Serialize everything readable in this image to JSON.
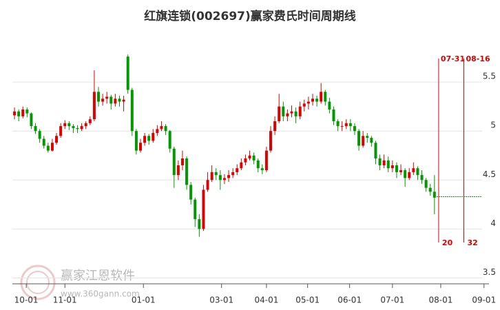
{
  "chart_data": {
    "type": "candlestick",
    "title": "红旗连锁(002697)赢家费氏时间周期线",
    "watermark": "赢家江恩软件",
    "watermark_url": "www.360gann.com",
    "up_color": "#e00000",
    "down_color": "#009900",
    "xlim": [
      0,
      112.5
    ],
    "xticks": [
      {
        "value": 3.3,
        "label": "10-01"
      },
      {
        "value": 12.5,
        "label": "11-01"
      },
      {
        "value": 31.2,
        "label": "01-01"
      },
      {
        "value": 49.8,
        "label": "03-01"
      },
      {
        "value": 60.5,
        "label": "04-01"
      },
      {
        "value": 70.3,
        "label": "05-01"
      },
      {
        "value": 80.3,
        "label": "06-01"
      },
      {
        "value": 90.5,
        "label": "07-01"
      },
      {
        "value": 102,
        "label": "08-01"
      },
      {
        "value": 112.3,
        "label": "09-01"
      }
    ],
    "ylim": [
      3.44,
      6.0
    ],
    "yticks": [
      {
        "value": 3.5,
        "label": "3.5"
      },
      4,
      4.5,
      5,
      5.5
    ],
    "grid": true,
    "cycle_lines": [
      {
        "x": 101.5,
        "label": "07-31",
        "count": 20
      },
      {
        "x": 107.5,
        "label": "08-16",
        "count": 32
      }
    ],
    "cycle_color": "#e00000",
    "level": 4.33,
    "level_color": "#009900",
    "ohlc": [
      [
        5.16,
        5.24,
        5.12,
        5.2
      ],
      [
        5.2,
        5.22,
        5.1,
        5.15
      ],
      [
        5.15,
        5.25,
        5.13,
        5.22
      ],
      [
        5.22,
        5.24,
        5.14,
        5.18
      ],
      [
        5.18,
        5.19,
        5.02,
        5.05
      ],
      [
        5.05,
        5.08,
        4.97,
        5.0
      ],
      [
        5.0,
        5.02,
        4.88,
        4.92
      ],
      [
        4.92,
        4.95,
        4.82,
        4.85
      ],
      [
        4.85,
        4.88,
        4.78,
        4.8
      ],
      [
        4.8,
        4.92,
        4.79,
        4.88
      ],
      [
        4.88,
        4.98,
        4.86,
        4.95
      ],
      [
        4.95,
        5.08,
        4.93,
        5.05
      ],
      [
        5.05,
        5.11,
        5.02,
        5.08
      ],
      [
        5.08,
        5.1,
        5.01,
        5.05
      ],
      [
        5.05,
        5.07,
        4.98,
        5.03
      ],
      [
        5.03,
        5.06,
        4.98,
        5.02
      ],
      [
        5.02,
        5.08,
        5.0,
        5.05
      ],
      [
        5.05,
        5.1,
        5.02,
        5.08
      ],
      [
        5.08,
        5.15,
        5.06,
        5.12
      ],
      [
        5.12,
        5.62,
        5.1,
        5.4
      ],
      [
        5.4,
        5.45,
        5.25,
        5.3
      ],
      [
        5.3,
        5.38,
        5.26,
        5.33
      ],
      [
        5.33,
        5.4,
        5.28,
        5.35
      ],
      [
        5.35,
        5.37,
        5.22,
        5.28
      ],
      [
        5.28,
        5.38,
        5.25,
        5.33
      ],
      [
        5.33,
        5.36,
        5.25,
        5.3
      ],
      [
        5.3,
        5.36,
        5.2,
        5.32
      ],
      [
        5.76,
        5.78,
        5.38,
        5.42
      ],
      [
        5.42,
        5.44,
        4.95,
        5.0
      ],
      [
        5.0,
        5.02,
        4.76,
        4.8
      ],
      [
        4.8,
        4.92,
        4.78,
        4.88
      ],
      [
        4.88,
        4.98,
        4.85,
        4.95
      ],
      [
        4.95,
        4.97,
        4.86,
        4.9
      ],
      [
        4.9,
        5.02,
        4.88,
        4.98
      ],
      [
        4.98,
        5.06,
        4.95,
        5.02
      ],
      [
        5.02,
        5.1,
        5.0,
        5.05
      ],
      [
        5.05,
        5.07,
        4.96,
        5.0
      ],
      [
        5.0,
        5.01,
        4.78,
        4.82
      ],
      [
        4.82,
        4.84,
        4.42,
        4.55
      ],
      [
        4.55,
        4.7,
        4.5,
        4.65
      ],
      [
        4.65,
        4.8,
        4.6,
        4.72
      ],
      [
        4.72,
        4.74,
        4.4,
        4.45
      ],
      [
        4.45,
        4.48,
        4.25,
        4.3
      ],
      [
        4.3,
        4.32,
        4.02,
        4.1
      ],
      [
        4.1,
        4.15,
        3.92,
        4.0
      ],
      [
        4.0,
        4.45,
        3.98,
        4.4
      ],
      [
        4.4,
        4.58,
        4.38,
        4.5
      ],
      [
        4.5,
        4.65,
        4.48,
        4.58
      ],
      [
        4.58,
        4.62,
        4.5,
        4.55
      ],
      [
        4.55,
        4.6,
        4.4,
        4.5
      ],
      [
        4.5,
        4.56,
        4.46,
        4.52
      ],
      [
        4.52,
        4.6,
        4.48,
        4.55
      ],
      [
        4.55,
        4.62,
        4.52,
        4.58
      ],
      [
        4.58,
        4.66,
        4.55,
        4.62
      ],
      [
        4.62,
        4.72,
        4.6,
        4.68
      ],
      [
        4.68,
        4.76,
        4.65,
        4.72
      ],
      [
        4.72,
        4.8,
        4.7,
        4.75
      ],
      [
        4.75,
        4.78,
        4.66,
        4.7
      ],
      [
        4.7,
        4.72,
        4.58,
        4.62
      ],
      [
        4.62,
        4.66,
        4.56,
        4.6
      ],
      [
        4.6,
        4.84,
        4.58,
        4.8
      ],
      [
        4.8,
        5.05,
        4.78,
        5.0
      ],
      [
        5.0,
        5.15,
        4.96,
        5.1
      ],
      [
        5.1,
        5.38,
        5.08,
        5.25
      ],
      [
        5.25,
        5.3,
        5.1,
        5.15
      ],
      [
        5.15,
        5.22,
        5.1,
        5.18
      ],
      [
        5.18,
        5.26,
        5.14,
        5.2
      ],
      [
        5.2,
        5.24,
        5.08,
        5.15
      ],
      [
        5.15,
        5.3,
        5.12,
        5.25
      ],
      [
        5.25,
        5.32,
        5.2,
        5.28
      ],
      [
        5.28,
        5.35,
        5.22,
        5.3
      ],
      [
        5.3,
        5.38,
        5.26,
        5.33
      ],
      [
        5.33,
        5.36,
        5.25,
        5.3
      ],
      [
        5.3,
        5.49,
        5.28,
        5.4
      ],
      [
        5.4,
        5.42,
        5.26,
        5.3
      ],
      [
        5.3,
        5.34,
        5.18,
        5.22
      ],
      [
        5.22,
        5.25,
        5.06,
        5.1
      ],
      [
        5.1,
        5.12,
        5.0,
        5.05
      ],
      [
        5.05,
        5.1,
        5.0,
        5.05
      ],
      [
        5.05,
        5.12,
        5.02,
        5.08
      ],
      [
        5.08,
        5.12,
        5.0,
        5.05
      ],
      [
        5.05,
        5.08,
        4.96,
        5.0
      ],
      [
        5.0,
        5.02,
        4.8,
        4.85
      ],
      [
        4.85,
        5.0,
        4.83,
        4.95
      ],
      [
        4.95,
        4.98,
        4.88,
        4.93
      ],
      [
        4.93,
        4.95,
        4.84,
        4.88
      ],
      [
        4.88,
        4.9,
        4.66,
        4.72
      ],
      [
        4.72,
        4.76,
        4.6,
        4.65
      ],
      [
        4.65,
        4.76,
        4.62,
        4.7
      ],
      [
        4.7,
        4.74,
        4.58,
        4.62
      ],
      [
        4.62,
        4.7,
        4.58,
        4.65
      ],
      [
        4.65,
        4.68,
        4.52,
        4.58
      ],
      [
        4.58,
        4.66,
        4.55,
        4.6
      ],
      [
        4.6,
        4.62,
        4.43,
        4.52
      ],
      [
        4.52,
        4.62,
        4.5,
        4.58
      ],
      [
        4.58,
        4.68,
        4.55,
        4.62
      ],
      [
        4.62,
        4.64,
        4.5,
        4.55
      ],
      [
        4.55,
        4.6,
        4.46,
        4.5
      ],
      [
        4.5,
        4.52,
        4.38,
        4.42
      ],
      [
        4.42,
        4.46,
        4.34,
        4.38
      ],
      [
        4.38,
        4.55,
        4.15,
        4.32
      ]
    ]
  }
}
